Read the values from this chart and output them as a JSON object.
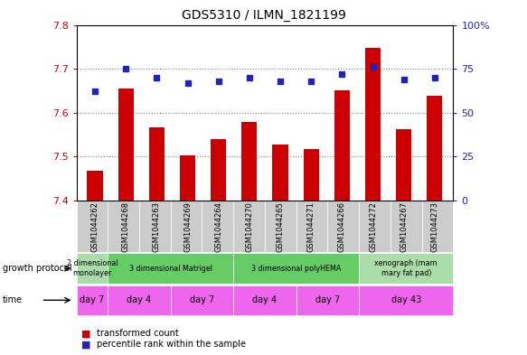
{
  "title": "GDS5310 / ILMN_1821199",
  "samples": [
    "GSM1044262",
    "GSM1044268",
    "GSM1044263",
    "GSM1044269",
    "GSM1044264",
    "GSM1044270",
    "GSM1044265",
    "GSM1044271",
    "GSM1044266",
    "GSM1044272",
    "GSM1044267",
    "GSM1044273"
  ],
  "transformed_count": [
    7.468,
    7.655,
    7.567,
    7.502,
    7.54,
    7.578,
    7.527,
    7.518,
    7.651,
    7.748,
    7.562,
    7.638
  ],
  "percentile_rank": [
    62,
    75,
    70,
    67,
    68,
    70,
    68,
    68,
    72,
    76,
    69,
    70
  ],
  "ylim_left": [
    7.4,
    7.8
  ],
  "ylim_right": [
    0,
    100
  ],
  "yticks_left": [
    7.4,
    7.5,
    7.6,
    7.7,
    7.8
  ],
  "yticks_right": [
    0,
    25,
    50,
    75,
    100
  ],
  "bar_color": "#cc0000",
  "dot_color": "#2222bb",
  "bar_width": 0.5,
  "gp_groups": [
    {
      "label": "2 dimensional\nmonolayer",
      "start": 0,
      "end": 1,
      "color": "#aaddaa"
    },
    {
      "label": "3 dimensional Matrigel",
      "start": 1,
      "end": 5,
      "color": "#66cc66"
    },
    {
      "label": "3 dimensional polyHEMA",
      "start": 5,
      "end": 9,
      "color": "#66cc66"
    },
    {
      "label": "xenograph (mam\nmary fat pad)",
      "start": 9,
      "end": 12,
      "color": "#aaddaa"
    }
  ],
  "time_groups": [
    {
      "label": "day 7",
      "start": 0,
      "end": 1
    },
    {
      "label": "day 4",
      "start": 1,
      "end": 3
    },
    {
      "label": "day 7",
      "start": 3,
      "end": 5
    },
    {
      "label": "day 4",
      "start": 5,
      "end": 7
    },
    {
      "label": "day 7",
      "start": 7,
      "end": 9
    },
    {
      "label": "day 43",
      "start": 9,
      "end": 12
    }
  ],
  "time_color": "#ee66ee",
  "grid_color": "#888888",
  "sample_bg": "#cccccc",
  "left_label_color": "#cc0000",
  "right_label_color": "#2222bb"
}
